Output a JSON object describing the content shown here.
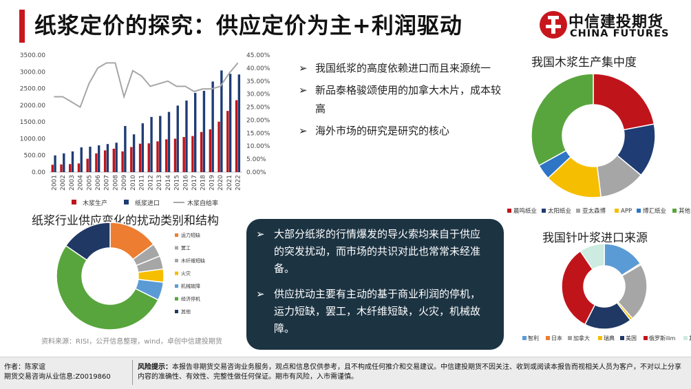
{
  "header": {
    "title": "纸浆定价的探究：供应定价为主+利润驱动",
    "logo_cn": "中信建投期货",
    "logo_en": "CHINA FUTURES",
    "accent_color": "#c8161d"
  },
  "bullets_top": [
    "我国纸浆的高度依赖进口而且来源统一",
    "新品泰格骏颂使用的加拿大木片，成本较高",
    "海外市场的研究是研究的核心"
  ],
  "dark_box": {
    "bullets": [
      "大部分纸浆的行情爆发的导火索均来自于供应的突发扰动，而市场的共识对此也常常未经准备。",
      "供应扰动主要有主动的基于商业利润的停机，运力短缺，罢工，木纤维短缺，火灾，机械故障。"
    ],
    "background": "#1c3342"
  },
  "source": "资料来源：RISI，公开信息整理，wind，卓创中信建投期货",
  "footer": {
    "author_line1": "作者：陈家谊",
    "author_line2": "期货交易咨询从业信息:Z0019860",
    "risk_label": "风险提示：",
    "risk_text": "本报告非期货交易咨询业务服务，观点和信息仅供参考，且不构成任何推介和交易建议。中信建投期货不因关注、收到或阅读本报告而视相关人员为客户，不对以上分享内容的准确性、有效性、完整性做任何保证。期市有风险，入市需谨慎。"
  },
  "chart_data": [
    {
      "type": "bar",
      "title": "",
      "categories": [
        "2001",
        "2002",
        "2003",
        "2004",
        "2005",
        "2006",
        "2007",
        "2008",
        "2009",
        "2010",
        "2011",
        "2012",
        "2013",
        "2014",
        "2015",
        "2016",
        "2017",
        "2018",
        "2019",
        "2020",
        "2021",
        "2022"
      ],
      "series": [
        {
          "name": "木浆生产",
          "type": "bar",
          "axis": "left",
          "color": "#c0141b",
          "values": [
            220,
            230,
            240,
            260,
            400,
            560,
            650,
            700,
            620,
            750,
            850,
            860,
            920,
            980,
            1000,
            1050,
            1080,
            1200,
            1280,
            1510,
            1830,
            2150
          ]
        },
        {
          "name": "纸浆进口",
          "type": "bar",
          "axis": "left",
          "color": "#1f3c74",
          "values": [
            500,
            560,
            620,
            740,
            760,
            800,
            840,
            880,
            1380,
            1130,
            1460,
            1650,
            1680,
            1800,
            1990,
            2140,
            2370,
            2430,
            2710,
            3040,
            2940,
            2920
          ]
        },
        {
          "name": "木浆自给率",
          "type": "line",
          "axis": "right",
          "color": "#a6a6a6",
          "values": [
            0.29,
            0.29,
            0.27,
            0.25,
            0.34,
            0.4,
            0.42,
            0.42,
            0.29,
            0.39,
            0.37,
            0.33,
            0.34,
            0.35,
            0.33,
            0.33,
            0.31,
            0.32,
            0.32,
            0.33,
            0.38,
            0.42
          ]
        }
      ],
      "y_left": {
        "min": 0,
        "max": 3500,
        "ticks": [
          "0.00",
          "500.00",
          "1000.00",
          "1500.00",
          "2000.00",
          "2500.00",
          "3000.00",
          "3500.00"
        ]
      },
      "y_right": {
        "min": 0,
        "max": 0.45,
        "ticks": [
          "0.00%",
          "5.00%",
          "10.00%",
          "15.00%",
          "20.00%",
          "25.00%",
          "30.00%",
          "35.00%",
          "40.00%",
          "45.00%"
        ]
      },
      "legend": "bottom"
    },
    {
      "type": "pie",
      "variant": "donut",
      "title": "我国木浆生产集中度",
      "labels": [
        "晨鸣纸业",
        "太阳纸业",
        "亚太森博",
        "APP",
        "博汇纸业",
        "其他"
      ],
      "values": [
        0.22,
        0.14,
        0.12,
        0.15,
        0.04,
        0.33
      ],
      "colors": [
        "#c0141b",
        "#1f3c74",
        "#a6a6a6",
        "#f6be00",
        "#2e75c6",
        "#58a53d"
      ],
      "legend": "bottom"
    },
    {
      "type": "pie",
      "variant": "donut",
      "title": "纸浆行业供应变化的扰动类别和结构",
      "labels": [
        "运力短缺",
        "罢工",
        "木纤维短缺",
        "火灾",
        "机械故障",
        "经济停机",
        "其他"
      ],
      "values": [
        0.15,
        0.04,
        0.04,
        0.04,
        0.055,
        0.525,
        0.155
      ],
      "colors": [
        "#ed7d31",
        "#a6a6a6",
        "#a6a6a6",
        "#f6be00",
        "#5b9bd5",
        "#58a53d",
        "#1f3864"
      ],
      "legend": "right"
    },
    {
      "type": "pie",
      "variant": "donut",
      "title": "我国针叶浆进口来源",
      "labels": [
        "智利",
        "日本",
        "加拿大",
        "瑞典",
        "美国",
        "俄罗斯ilim",
        "其他"
      ],
      "values": [
        0.16,
        0.005,
        0.22,
        0.01,
        0.18,
        0.33,
        0.095
      ],
      "colors": [
        "#5b9bd5",
        "#ed7d31",
        "#a6a6a6",
        "#f6be00",
        "#1f3864",
        "#c0141b",
        "#cdebe0"
      ],
      "legend": "bottom"
    }
  ]
}
